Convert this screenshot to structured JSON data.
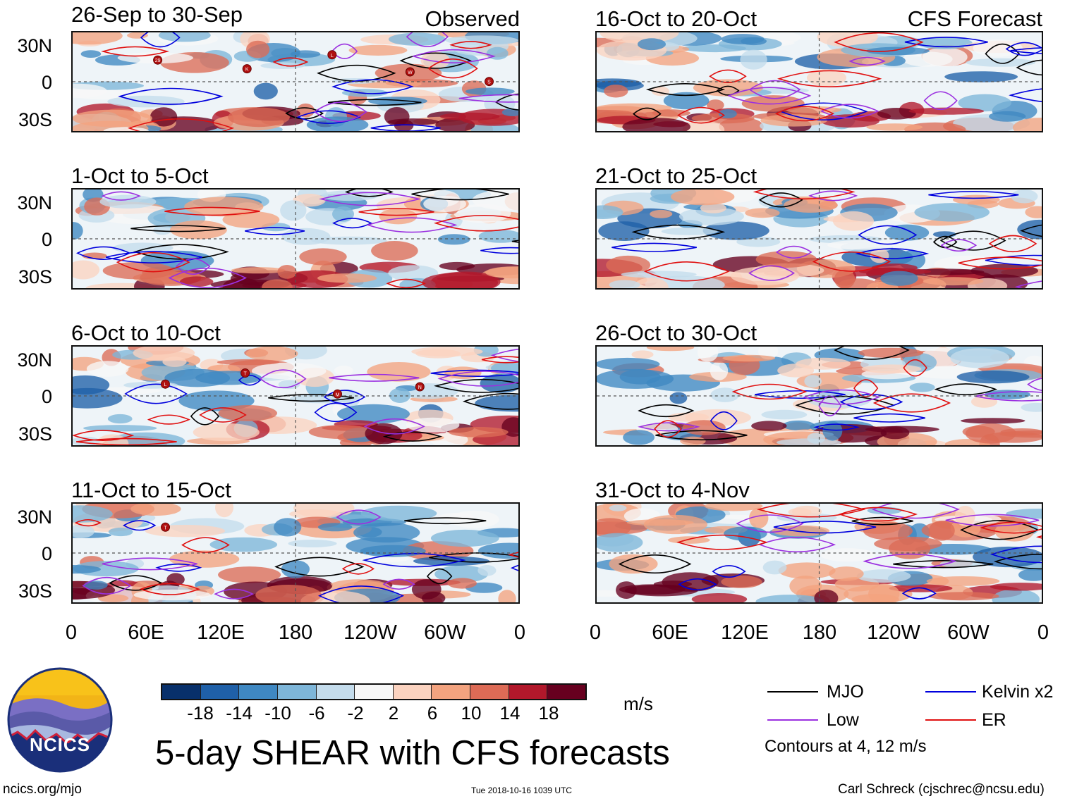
{
  "chart_data": {
    "type": "heatmap",
    "title": "5-day SHEAR with CFS forecasts",
    "panels": [
      {
        "period": "26-Sep to 30-Sep",
        "label": "Observed",
        "storms": [
          "29",
          "K",
          "L",
          "W",
          "S"
        ]
      },
      {
        "period": "1-Oct to 5-Oct",
        "label": "",
        "storms": []
      },
      {
        "period": "6-Oct to 10-Oct",
        "label": "",
        "storms": [
          "L",
          "T",
          "M",
          "N"
        ]
      },
      {
        "period": "11-Oct to 15-Oct",
        "label": "",
        "storms": [
          "T"
        ]
      },
      {
        "period": "16-Oct to 20-Oct",
        "label": "CFS Forecast",
        "storms": []
      },
      {
        "period": "21-Oct to 25-Oct",
        "label": "",
        "storms": []
      },
      {
        "period": "26-Oct to 30-Oct",
        "label": "",
        "storms": []
      },
      {
        "period": "31-Oct to 4-Nov",
        "label": "",
        "storms": []
      }
    ],
    "y_ticks": [
      "30N",
      "0",
      "30S"
    ],
    "x_ticks": [
      "0",
      "60E",
      "120E",
      "180",
      "120W",
      "60W",
      "0"
    ],
    "colorbar": {
      "labels": [
        "-18",
        "-14",
        "-10",
        "-6",
        "-2",
        "2",
        "6",
        "10",
        "14",
        "18"
      ],
      "colors": [
        "#08306b",
        "#1f60a8",
        "#3f88c2",
        "#7eb6d9",
        "#c4dcec",
        "#f7f7f7",
        "#fbd3c0",
        "#f3a37f",
        "#dd6b56",
        "#b2182b",
        "#67001f"
      ],
      "units": "m/s"
    },
    "legend": [
      {
        "name": "MJO",
        "color": "#000000"
      },
      {
        "name": "Kelvin x2",
        "color": "#0000dd"
      },
      {
        "name": "Low",
        "color": "#9b30e0"
      },
      {
        "name": "ER",
        "color": "#e01010"
      }
    ],
    "contour_note": "Contours at 4, 12 m/s"
  },
  "footer": {
    "site": "ncics.org/mjo",
    "timestamp": "Tue 2018-10-16 1039 UTC",
    "author": "Carl Schreck (cjschrec@ncsu.edu)",
    "logo_text": "NCICS"
  }
}
